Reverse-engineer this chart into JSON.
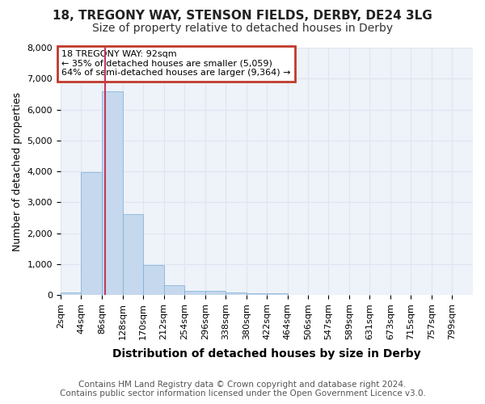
{
  "title1": "18, TREGONY WAY, STENSON FIELDS, DERBY, DE24 3LG",
  "title2": "Size of property relative to detached houses in Derby",
  "xlabel": "Distribution of detached houses by size in Derby",
  "ylabel": "Number of detached properties",
  "annotation_title": "18 TREGONY WAY: 92sqm",
  "annotation_line1": "← 35% of detached houses are smaller (5,059)",
  "annotation_line2": "64% of semi-detached houses are larger (9,364) →",
  "footer1": "Contains HM Land Registry data © Crown copyright and database right 2024.",
  "footer2": "Contains public sector information licensed under the Open Government Licence v3.0.",
  "property_size": 92,
  "bar_edges": [
    2,
    44,
    86,
    128,
    170,
    212,
    254,
    296,
    338,
    380,
    422,
    464,
    506,
    547,
    589,
    631,
    673,
    715,
    757,
    799,
    841
  ],
  "bar_heights": [
    75,
    3980,
    6600,
    2620,
    960,
    320,
    130,
    120,
    70,
    65,
    55,
    0,
    0,
    0,
    0,
    0,
    0,
    0,
    0,
    0
  ],
  "bar_color": "#c5d8ed",
  "bar_edge_color": "#7aadd4",
  "highlight_color": "#c5385e",
  "grid_color": "#dce6f1",
  "background_color": "#eef2f9",
  "ylim": [
    0,
    8000
  ],
  "yticks": [
    0,
    1000,
    2000,
    3000,
    4000,
    5000,
    6000,
    7000,
    8000
  ],
  "annotation_box_color": "#c0392b",
  "title1_fontsize": 11,
  "title2_fontsize": 10,
  "axis_label_fontsize": 9,
  "tick_fontsize": 8,
  "footer_fontsize": 7.5
}
